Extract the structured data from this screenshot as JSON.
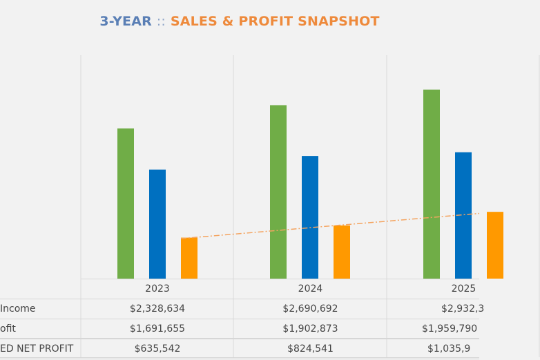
{
  "title": {
    "part1": "3-YEAR",
    "sep": "::",
    "part2": "SALES & PROFIT SNAPSHOT"
  },
  "colors": {
    "green": "#70ad47",
    "blue": "#0070c0",
    "orange": "#ff9900",
    "trend": "#f4a460"
  },
  "chart_data": {
    "type": "bar",
    "categories": [
      "2023",
      "2024",
      "2025"
    ],
    "series": [
      {
        "name": "Income",
        "color": "#70ad47",
        "values": [
          2328634,
          2690692,
          2932300
        ]
      },
      {
        "name": "ofit",
        "color": "#0070c0",
        "values": [
          1691655,
          1902873,
          1959790
        ]
      },
      {
        "name": "ED NET PROFIT",
        "color": "#ff9900",
        "values": [
          635542,
          824541,
          1035900
        ]
      }
    ],
    "trendline": {
      "series": "ED NET PROFIT",
      "style": "dash-dot",
      "type": "linear"
    },
    "ylim": [
      0,
      3400000
    ],
    "grid": "vertical category separators",
    "legend": "data table below chart"
  },
  "table": {
    "headers": [
      "2023",
      "2024",
      "2025"
    ],
    "rows": [
      {
        "label": "Income",
        "cells": [
          "$2,328,634",
          "$2,690,692",
          "$2,932,3"
        ]
      },
      {
        "label": "ofit",
        "cells": [
          "$1,691,655",
          "$1,902,873",
          "$1,959,790"
        ]
      },
      {
        "label": "ED NET PROFIT",
        "cells": [
          "$635,542",
          "$824,541",
          "$1,035,9"
        ]
      }
    ]
  }
}
